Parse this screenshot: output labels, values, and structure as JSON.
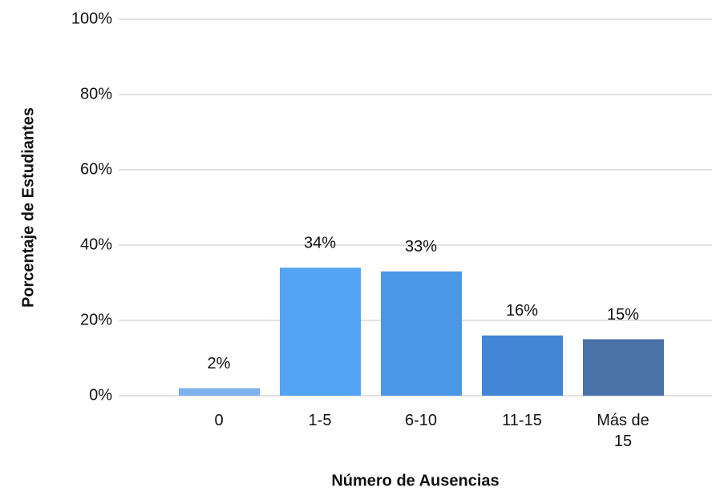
{
  "chart_data": {
    "type": "bar",
    "xlabel": "Número de Ausencias",
    "ylabel": "Porcentaje de Estudiantes",
    "categories": [
      "0",
      "1-5",
      "6-10",
      "11-15",
      "Más de 15"
    ],
    "values": [
      2,
      34,
      33,
      16,
      15
    ],
    "value_labels": [
      "2%",
      "34%",
      "33%",
      "16%",
      "15%"
    ],
    "colors": [
      "#7eb1ee",
      "#54a4f5",
      "#4a97e7",
      "#4287d5",
      "#4a72a8"
    ],
    "ylim": [
      0,
      100
    ],
    "yticks": [
      {
        "value": 0,
        "label": "0%"
      },
      {
        "value": 20,
        "label": "20%"
      },
      {
        "value": 40,
        "label": "40%"
      },
      {
        "value": 60,
        "label": "60%"
      },
      {
        "value": 80,
        "label": "80%"
      },
      {
        "value": 100,
        "label": "100%"
      }
    ],
    "grid": true
  }
}
